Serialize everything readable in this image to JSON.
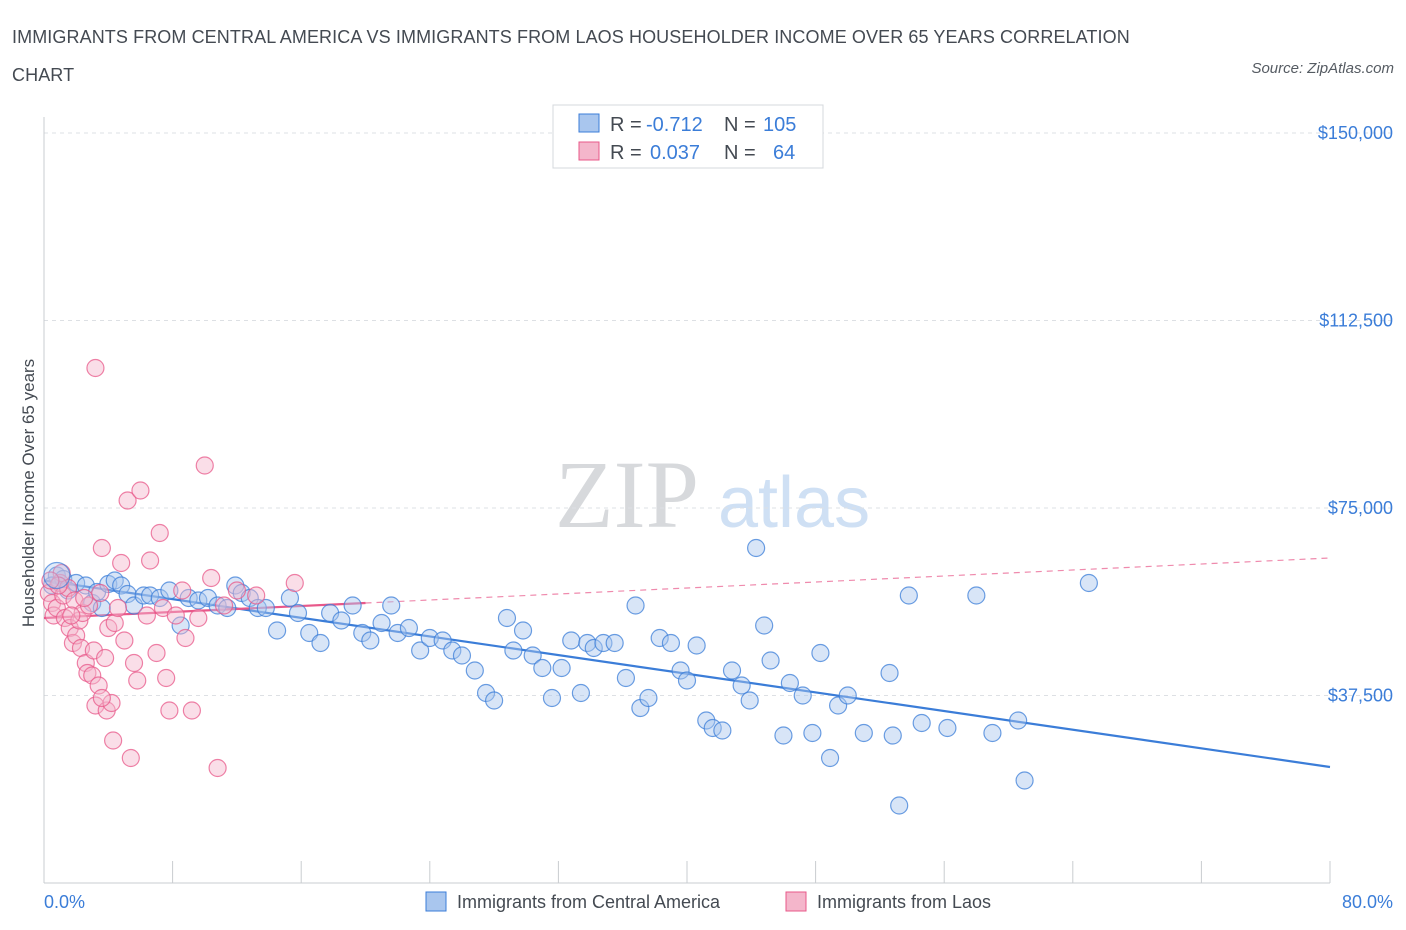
{
  "title": "IMMIGRANTS FROM CENTRAL AMERICA VS IMMIGRANTS FROM LAOS HOUSEHOLDER INCOME OVER 65 YEARS CORRELATION CHART",
  "source": "Source: ZipAtlas.com",
  "watermark": {
    "zip": "ZIP",
    "atlas": "atlas"
  },
  "colors": {
    "blue": "#3b7dd8",
    "blue_fill": "#a9c6ee",
    "pink": "#e8588a",
    "pink_fill": "#f4b6cb",
    "axis_text": "#3b7dd8",
    "grid": "#dde0e4"
  },
  "legend_box": {
    "rows": [
      {
        "r_label": "R =",
        "r_value": "-0.712",
        "n_label": "N =",
        "n_value": "105",
        "color": "blue"
      },
      {
        "r_label": "R =",
        "r_value": "0.037",
        "n_label": "N =",
        "n_value": "64",
        "color": "pink"
      }
    ]
  },
  "chart_data": {
    "type": "scatter",
    "ylabel": "Householder Income Over 65 years",
    "x_range": [
      0,
      80
    ],
    "y_range": [
      0,
      150000
    ],
    "x_tick_labels": [
      "0.0%",
      "80.0%"
    ],
    "y_ticks": [
      37500,
      75000,
      112500,
      150000
    ],
    "y_tick_labels": [
      "$37,500",
      "$75,000",
      "$112,500",
      "$150,000"
    ],
    "grid": true,
    "legend_position": "bottom",
    "series": [
      {
        "name": "Immigrants from Central America",
        "color": "blue",
        "trend": {
          "x": [
            0,
            80
          ],
          "y": [
            60500,
            23200
          ],
          "style": "solid"
        },
        "points": [
          [
            0.8,
            61500
          ],
          [
            0.5,
            59500
          ],
          [
            1.2,
            60800
          ],
          [
            1.5,
            58500
          ],
          [
            2.0,
            60000
          ],
          [
            2.6,
            59500
          ],
          [
            3.0,
            56000
          ],
          [
            3.3,
            58200
          ],
          [
            3.6,
            55000
          ],
          [
            4.0,
            59800
          ],
          [
            4.4,
            60500
          ],
          [
            4.8,
            59500
          ],
          [
            5.2,
            57800
          ],
          [
            5.6,
            55500
          ],
          [
            6.2,
            57500
          ],
          [
            6.6,
            57500
          ],
          [
            7.2,
            57000
          ],
          [
            7.8,
            58500
          ],
          [
            8.5,
            51500
          ],
          [
            9.0,
            57000
          ],
          [
            9.6,
            56500
          ],
          [
            10.2,
            57000
          ],
          [
            10.8,
            55500
          ],
          [
            11.4,
            55000
          ],
          [
            11.9,
            59500
          ],
          [
            12.3,
            58000
          ],
          [
            12.8,
            57000
          ],
          [
            13.3,
            55000
          ],
          [
            13.8,
            55000
          ],
          [
            14.5,
            50500
          ],
          [
            15.3,
            57000
          ],
          [
            15.8,
            54000
          ],
          [
            16.5,
            50000
          ],
          [
            17.2,
            48000
          ],
          [
            17.8,
            54000
          ],
          [
            18.5,
            52500
          ],
          [
            19.2,
            55500
          ],
          [
            19.8,
            50000
          ],
          [
            20.3,
            48500
          ],
          [
            21.0,
            52000
          ],
          [
            21.6,
            55500
          ],
          [
            22.0,
            50000
          ],
          [
            22.7,
            51000
          ],
          [
            23.4,
            46500
          ],
          [
            24.0,
            49000
          ],
          [
            24.8,
            48500
          ],
          [
            25.4,
            46500
          ],
          [
            26.0,
            45500
          ],
          [
            26.8,
            42500
          ],
          [
            27.5,
            38000
          ],
          [
            28.0,
            36500
          ],
          [
            28.8,
            53000
          ],
          [
            29.2,
            46500
          ],
          [
            29.8,
            50500
          ],
          [
            30.4,
            45500
          ],
          [
            31.0,
            43000
          ],
          [
            31.6,
            37000
          ],
          [
            32.2,
            43000
          ],
          [
            32.8,
            48500
          ],
          [
            33.4,
            38000
          ],
          [
            33.8,
            48000
          ],
          [
            34.2,
            47000
          ],
          [
            34.8,
            48000
          ],
          [
            35.5,
            48000
          ],
          [
            36.2,
            41000
          ],
          [
            36.8,
            55500
          ],
          [
            37.1,
            35000
          ],
          [
            37.6,
            37000
          ],
          [
            38.3,
            49000
          ],
          [
            39.0,
            48000
          ],
          [
            39.6,
            42500
          ],
          [
            40.0,
            40500
          ],
          [
            40.6,
            47500
          ],
          [
            41.2,
            32500
          ],
          [
            41.6,
            31000
          ],
          [
            42.2,
            30500
          ],
          [
            42.8,
            42500
          ],
          [
            43.4,
            39500
          ],
          [
            43.9,
            36500
          ],
          [
            44.3,
            67000
          ],
          [
            44.8,
            51500
          ],
          [
            45.2,
            44500
          ],
          [
            46.0,
            29500
          ],
          [
            46.4,
            40000
          ],
          [
            47.2,
            37500
          ],
          [
            47.8,
            30000
          ],
          [
            48.3,
            46000
          ],
          [
            48.9,
            25000
          ],
          [
            49.4,
            35500
          ],
          [
            50.0,
            37500
          ],
          [
            51.0,
            30000
          ],
          [
            52.6,
            42000
          ],
          [
            52.8,
            29500
          ],
          [
            53.2,
            15500
          ],
          [
            53.8,
            57500
          ],
          [
            54.6,
            32000
          ],
          [
            56.2,
            31000
          ],
          [
            58.0,
            57500
          ],
          [
            59.0,
            30000
          ],
          [
            60.6,
            32500
          ],
          [
            61.0,
            20500
          ],
          [
            65.0,
            60000
          ]
        ]
      },
      {
        "name": "Immigrants from Laos",
        "color": "pink",
        "trend": {
          "x": [
            0,
            20
          ],
          "y": [
            53000,
            56000
          ],
          "style": "solid",
          "dashed_extension": {
            "x": [
              20,
              80
            ],
            "y": [
              56000,
              65000
            ]
          }
        },
        "points": [
          [
            0.3,
            58000
          ],
          [
            0.5,
            56000
          ],
          [
            0.6,
            53500
          ],
          [
            0.8,
            55000
          ],
          [
            1.0,
            60000
          ],
          [
            1.2,
            57500
          ],
          [
            1.3,
            53000
          ],
          [
            1.5,
            59000
          ],
          [
            1.6,
            51000
          ],
          [
            1.8,
            48000
          ],
          [
            1.9,
            56500
          ],
          [
            2.0,
            49500
          ],
          [
            2.2,
            52500
          ],
          [
            2.3,
            47000
          ],
          [
            2.4,
            54000
          ],
          [
            2.6,
            44000
          ],
          [
            2.7,
            42000
          ],
          [
            2.8,
            55500
          ],
          [
            3.0,
            41500
          ],
          [
            3.1,
            46500
          ],
          [
            3.2,
            35500
          ],
          [
            3.4,
            39500
          ],
          [
            3.5,
            58000
          ],
          [
            3.6,
            67000
          ],
          [
            3.8,
            45000
          ],
          [
            3.9,
            34500
          ],
          [
            4.0,
            51000
          ],
          [
            4.2,
            36000
          ],
          [
            4.3,
            28500
          ],
          [
            4.4,
            52000
          ],
          [
            4.6,
            55000
          ],
          [
            4.8,
            64000
          ],
          [
            5.0,
            48500
          ],
          [
            5.2,
            76500
          ],
          [
            5.4,
            25000
          ],
          [
            5.6,
            44000
          ],
          [
            5.8,
            40500
          ],
          [
            6.0,
            78500
          ],
          [
            6.4,
            53500
          ],
          [
            6.6,
            64500
          ],
          [
            7.0,
            46000
          ],
          [
            7.2,
            70000
          ],
          [
            7.4,
            55000
          ],
          [
            7.6,
            41000
          ],
          [
            7.8,
            34500
          ],
          [
            8.2,
            53500
          ],
          [
            8.6,
            58500
          ],
          [
            8.8,
            49000
          ],
          [
            9.2,
            34500
          ],
          [
            9.6,
            53000
          ],
          [
            10.0,
            83500
          ],
          [
            10.4,
            61000
          ],
          [
            10.8,
            23000
          ],
          [
            11.2,
            55500
          ],
          [
            12.0,
            58500
          ],
          [
            13.2,
            57500
          ],
          [
            15.6,
            60000
          ],
          [
            3.2,
            103000
          ],
          [
            1.1,
            62000
          ],
          [
            0.9,
            59500
          ],
          [
            0.4,
            60500
          ],
          [
            2.5,
            57000
          ],
          [
            1.7,
            53500
          ],
          [
            3.6,
            37000
          ]
        ]
      }
    ]
  },
  "bottom_legend": [
    {
      "label": "Immigrants from Central America",
      "color": "blue"
    },
    {
      "label": "Immigrants from Laos",
      "color": "pink"
    }
  ]
}
